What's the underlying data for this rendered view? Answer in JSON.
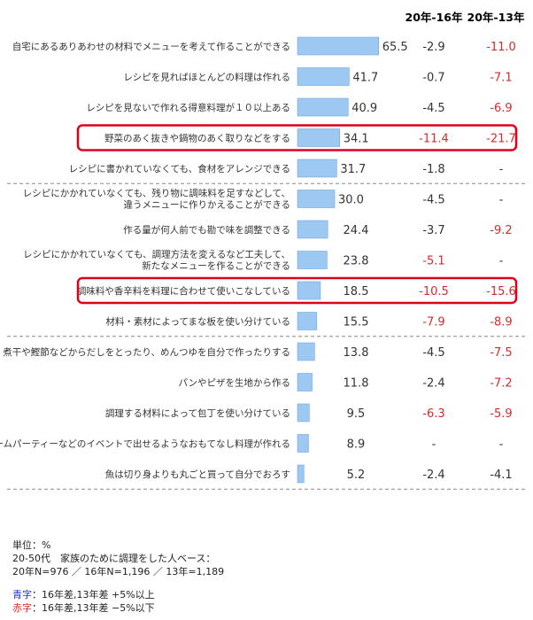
{
  "chart_data": {
    "type": "bar",
    "orientation": "horizontal",
    "column_headers": [
      "20年-16年",
      "20年-13年"
    ],
    "categories": [
      [
        "自宅にあるありあわせの材料でメニューを考えて作ることができる"
      ],
      [
        "レシピを見ればほとんどの料理は作れる"
      ],
      [
        "レシピを見ないで作れる得意料理が１０以上ある"
      ],
      [
        "野菜のあく抜きや鍋物のあく取りなどをする"
      ],
      [
        "レシピに書かれていなくても、食材をアレンジできる"
      ],
      [
        "レシピにかかれていなくても、残り物に調味料を足すなどして、",
        "違うメニューに作りかえることができる"
      ],
      [
        "作る量が何人前でも勘で味を調整できる"
      ],
      [
        "レシピにかかれていなくても、調理方法を変えるなど工夫して、",
        "新たなメニューを作ることができる"
      ],
      [
        "調味料や香辛料を料理に合わせて使いこなしている"
      ],
      [
        "材料・素材によってまな板を使い分けている"
      ],
      [
        "煮干や鰹節などからだしをとったり、めんつゆを自分で作ったりする"
      ],
      [
        "パンやピザを生地から作る"
      ],
      [
        "調理する材料によって包丁を使い分けている"
      ],
      [
        "ホームパーティーなどのイベントで出せるようなおもてなし料理が作れる"
      ],
      [
        "魚は切り身よりも丸ごと買って自分でおろす"
      ]
    ],
    "values": [
      "65.5",
      "41.7",
      "40.9",
      "34.1",
      "31.7",
      "30.0",
      "24.4",
      "23.8",
      "18.5",
      "15.5",
      "13.8",
      "11.8",
      "9.5",
      "8.9",
      "5.2"
    ],
    "diff_16": [
      "-2.9",
      "-0.7",
      "-4.5",
      "-11.4",
      "-1.8",
      "-4.5",
      "-3.7",
      "-5.1",
      "-10.5",
      "-7.9",
      "-4.5",
      "-2.4",
      "-6.3",
      "-",
      "-2.4"
    ],
    "diff_13": [
      "-11.0",
      "-7.1",
      "-6.9",
      "-21.7",
      "-",
      "-",
      "-9.2",
      "-",
      "-15.6",
      "-8.9",
      "-7.5",
      "-7.2",
      "-5.9",
      "-",
      "-4.1"
    ],
    "diff_16_red": [
      false,
      false,
      false,
      true,
      false,
      false,
      false,
      true,
      true,
      true,
      false,
      false,
      true,
      false,
      false
    ],
    "diff_13_red": [
      true,
      true,
      true,
      true,
      false,
      false,
      true,
      false,
      true,
      true,
      true,
      true,
      true,
      false,
      false
    ],
    "highlighted_rows": [
      3,
      8
    ],
    "dashed_separators_after": [
      4,
      9,
      14
    ],
    "xlim": [
      0,
      100
    ],
    "bar_color": "#9dc8f2",
    "bar_edge_color": "#6fa8dc",
    "highlight_color": "#e0001b",
    "red_text_color": "#d42b2b"
  },
  "notes": {
    "unit": "単位：%",
    "base": "20-50代　家族のために調理をした人ベース：",
    "sample": "20年N=976 ／ 16年N=1,196 ／ 13年=1,189"
  },
  "legend": {
    "blue_label": "青字",
    "blue_desc": "：16年差,13年差 +5%以上",
    "red_label": "赤字",
    "red_desc": "：16年差,13年差 −5%以下"
  }
}
